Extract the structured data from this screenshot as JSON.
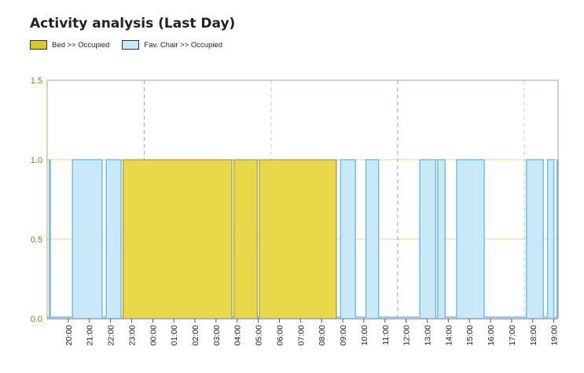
{
  "title": "Activity analysis (Last Day)",
  "legend": {
    "bed": "Bed >> Occupied",
    "chair": "Fav. Chair >> Occupied"
  },
  "colors": {
    "bed_fill": "#e8d84a",
    "bed_stroke": "#9a8a2a",
    "chair_fill": "#c9e9f8",
    "chair_stroke": "#6fc1de",
    "grid": "#f0d878",
    "axis_text": "#8a7a10",
    "vline_dark": "#9a9ad6",
    "vline_light": "#c8c8ea"
  },
  "chart_data": {
    "type": "area",
    "x_unit": "hours since 19:00 of previous day",
    "xlim": [
      0,
      24.2
    ],
    "ylim": [
      0,
      1.5
    ],
    "y_ticks": [
      "0.0",
      "0.5",
      "1.0",
      "1.5"
    ],
    "y_tick_values": [
      0,
      0.5,
      1,
      1.5
    ],
    "x_tick_values": [
      1,
      2,
      3,
      4,
      5,
      6,
      7,
      8,
      9,
      10,
      11,
      12,
      13,
      14,
      15,
      16,
      17,
      18,
      19,
      20,
      21,
      22,
      23,
      24
    ],
    "x_tick_labels": [
      "20:00",
      "21:00",
      "22:00",
      "23:00",
      "00:00",
      "01:00",
      "02:00",
      "03:00",
      "04:00",
      "05:00",
      "06:00",
      "07:00",
      "08:00",
      "09:00",
      "10:00",
      "11:00",
      "12:00",
      "13:00",
      "14:00",
      "15:00",
      "16:00",
      "17:00",
      "18:00",
      "19:00"
    ],
    "dashed_vlines": [
      {
        "x": 4.6,
        "style": "dark"
      },
      {
        "x": 10.6,
        "style": "light"
      },
      {
        "x": 16.6,
        "style": "dark"
      },
      {
        "x": 22.6,
        "style": "light"
      }
    ],
    "series": [
      {
        "name": "Fav. Chair >> Occupied",
        "intervals": [
          [
            0.1,
            0.15
          ],
          [
            1.2,
            2.6
          ],
          [
            2.8,
            3.5
          ],
          [
            13.9,
            14.6
          ],
          [
            15.1,
            15.7
          ],
          [
            17.65,
            18.4
          ],
          [
            18.5,
            18.85
          ],
          [
            19.4,
            20.7
          ],
          [
            22.7,
            23.5
          ],
          [
            23.7,
            24.0
          ],
          [
            24.15,
            24.2
          ]
        ]
      },
      {
        "name": "Bed >> Occupied",
        "intervals": [
          [
            3.6,
            8.75
          ],
          [
            8.85,
            9.95
          ],
          [
            10.05,
            13.7
          ]
        ]
      }
    ]
  }
}
